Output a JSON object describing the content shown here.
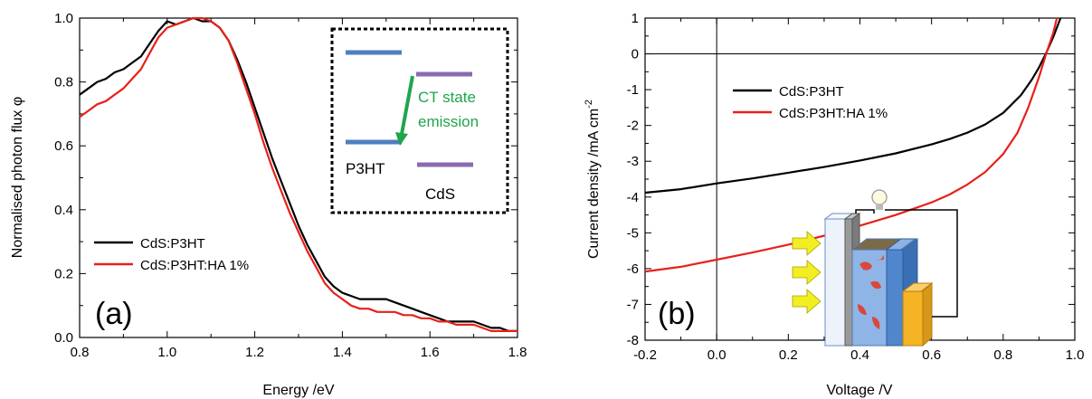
{
  "chart_data": [
    {
      "type": "line",
      "panel_label": "(a)",
      "xlabel": "Energy /eV",
      "ylabel": "Normalised photon flux φ",
      "xlim": [
        0.8,
        1.8
      ],
      "ylim": [
        0.0,
        1.0
      ],
      "x_ticks": [
        "0.8",
        "1.0",
        "1.2",
        "1.4",
        "1.6",
        "1.8"
      ],
      "y_ticks": [
        "0.0",
        "0.2",
        "0.4",
        "0.6",
        "0.8",
        "1.0"
      ],
      "legend_position": "lower-left",
      "series": [
        {
          "name": "CdS:P3HT",
          "color": "#000000",
          "x": [
            0.8,
            0.82,
            0.84,
            0.86,
            0.88,
            0.9,
            0.92,
            0.94,
            0.96,
            0.98,
            1.0,
            1.02,
            1.04,
            1.06,
            1.08,
            1.1,
            1.12,
            1.14,
            1.16,
            1.18,
            1.2,
            1.22,
            1.24,
            1.26,
            1.28,
            1.3,
            1.32,
            1.34,
            1.36,
            1.38,
            1.4,
            1.42,
            1.44,
            1.46,
            1.48,
            1.5,
            1.52,
            1.54,
            1.56,
            1.58,
            1.6,
            1.62,
            1.64,
            1.66,
            1.68,
            1.7,
            1.72,
            1.74,
            1.76,
            1.78,
            1.8
          ],
          "values": [
            0.76,
            0.78,
            0.8,
            0.81,
            0.83,
            0.84,
            0.86,
            0.88,
            0.92,
            0.96,
            0.99,
            0.98,
            0.99,
            1.0,
            0.99,
            0.99,
            0.97,
            0.93,
            0.87,
            0.8,
            0.72,
            0.64,
            0.56,
            0.49,
            0.42,
            0.35,
            0.29,
            0.24,
            0.19,
            0.16,
            0.14,
            0.13,
            0.12,
            0.12,
            0.12,
            0.12,
            0.11,
            0.1,
            0.09,
            0.08,
            0.07,
            0.06,
            0.05,
            0.05,
            0.05,
            0.05,
            0.04,
            0.03,
            0.03,
            0.02,
            0.02
          ]
        },
        {
          "name": "CdS:P3HT:HA 1%",
          "color": "#e8201a",
          "x": [
            0.8,
            0.82,
            0.84,
            0.86,
            0.88,
            0.9,
            0.92,
            0.94,
            0.96,
            0.98,
            1.0,
            1.02,
            1.04,
            1.06,
            1.08,
            1.1,
            1.12,
            1.14,
            1.16,
            1.18,
            1.2,
            1.22,
            1.24,
            1.26,
            1.28,
            1.3,
            1.32,
            1.34,
            1.36,
            1.38,
            1.4,
            1.42,
            1.44,
            1.46,
            1.48,
            1.5,
            1.52,
            1.54,
            1.56,
            1.58,
            1.6,
            1.62,
            1.64,
            1.66,
            1.68,
            1.7,
            1.72,
            1.74,
            1.76,
            1.78,
            1.8
          ],
          "values": [
            0.69,
            0.71,
            0.73,
            0.74,
            0.76,
            0.78,
            0.81,
            0.84,
            0.89,
            0.94,
            0.97,
            0.98,
            0.99,
            1.0,
            1.0,
            0.99,
            0.97,
            0.93,
            0.86,
            0.78,
            0.7,
            0.61,
            0.53,
            0.46,
            0.39,
            0.33,
            0.27,
            0.22,
            0.17,
            0.14,
            0.12,
            0.1,
            0.09,
            0.09,
            0.08,
            0.08,
            0.08,
            0.07,
            0.07,
            0.06,
            0.06,
            0.05,
            0.05,
            0.04,
            0.04,
            0.04,
            0.03,
            0.02,
            0.02,
            0.02,
            0.02
          ]
        }
      ],
      "inset": {
        "labels": [
          "P3HT",
          "CdS",
          "CT state",
          "emission"
        ],
        "colors": {
          "p3ht": "#4f7fbf",
          "cds": "#8a6bb0",
          "arrow": "#1ea64a"
        }
      }
    },
    {
      "type": "line",
      "panel_label": "(b)",
      "xlabel": "Voltage /V",
      "ylabel": "Current density /mA cm",
      "ylabel_sup": "-2",
      "xlim": [
        -0.2,
        1.0
      ],
      "ylim": [
        -8,
        1
      ],
      "x_ticks": [
        "-0.2",
        "0.0",
        "0.2",
        "0.4",
        "0.6",
        "0.8",
        "1.0"
      ],
      "y_ticks": [
        "-8",
        "-7",
        "-6",
        "-5",
        "-4",
        "-3",
        "-2",
        "-1",
        "0",
        "1"
      ],
      "legend_position": "upper-left",
      "series": [
        {
          "name": "CdS:P3HT",
          "color": "#000000",
          "x": [
            -0.2,
            -0.1,
            0.0,
            0.1,
            0.2,
            0.3,
            0.4,
            0.5,
            0.6,
            0.65,
            0.7,
            0.75,
            0.8,
            0.85,
            0.88,
            0.9,
            0.92,
            0.94,
            0.96
          ],
          "values": [
            -3.88,
            -3.78,
            -3.62,
            -3.48,
            -3.32,
            -3.16,
            -2.98,
            -2.78,
            -2.53,
            -2.38,
            -2.2,
            -1.97,
            -1.65,
            -1.15,
            -0.72,
            -0.38,
            0.02,
            0.48,
            1.0
          ]
        },
        {
          "name": "CdS:P3HT:HA 1%",
          "color": "#e8201a",
          "x": [
            -0.2,
            -0.1,
            0.0,
            0.1,
            0.2,
            0.3,
            0.4,
            0.5,
            0.6,
            0.65,
            0.7,
            0.75,
            0.8,
            0.84,
            0.87,
            0.9,
            0.92,
            0.94,
            0.95
          ],
          "values": [
            -6.08,
            -5.95,
            -5.75,
            -5.55,
            -5.33,
            -5.08,
            -4.8,
            -4.5,
            -4.15,
            -3.93,
            -3.65,
            -3.3,
            -2.8,
            -2.2,
            -1.5,
            -0.65,
            0.0,
            0.6,
            1.0
          ]
        }
      ],
      "inset": {
        "colors": {
          "arrow": "#f2ee22",
          "glass": "#eef3fb",
          "blue": "#4f86cc",
          "orange": "#f5b325",
          "grey": "#9a9a9a",
          "red": "#d9473d"
        }
      }
    }
  ]
}
